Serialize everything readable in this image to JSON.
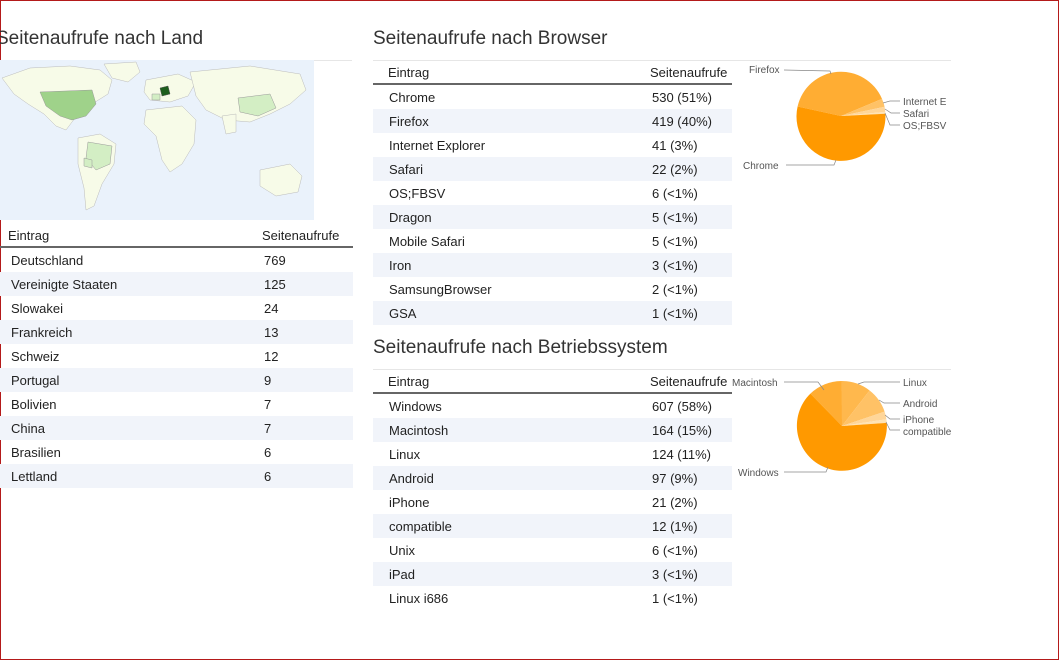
{
  "country": {
    "title": "Seitenaufrufe nach Land",
    "col_entry": "Eintrag",
    "col_views": "Seitenaufrufe",
    "rows": [
      {
        "label": "Deutschland",
        "value": "769"
      },
      {
        "label": "Vereinigte Staaten",
        "value": "125"
      },
      {
        "label": "Slowakei",
        "value": "24"
      },
      {
        "label": "Frankreich",
        "value": "13"
      },
      {
        "label": "Schweiz",
        "value": "12"
      },
      {
        "label": "Portugal",
        "value": "9"
      },
      {
        "label": "Bolivien",
        "value": "7"
      },
      {
        "label": "China",
        "value": "7"
      },
      {
        "label": "Brasilien",
        "value": "6"
      },
      {
        "label": "Lettland",
        "value": "6"
      }
    ]
  },
  "browser": {
    "title": "Seitenaufrufe nach Browser",
    "col_entry": "Eintrag",
    "col_views": "Seitenaufrufe",
    "rows": [
      {
        "label": "Chrome",
        "value": "530 (51%)"
      },
      {
        "label": "Firefox",
        "value": "419 (40%)"
      },
      {
        "label": "Internet Explorer",
        "value": "41 (3%)"
      },
      {
        "label": "Safari",
        "value": "22 (2%)"
      },
      {
        "label": "OS;FBSV",
        "value": "6 (<1%)"
      },
      {
        "label": "Dragon",
        "value": "5 (<1%)"
      },
      {
        "label": "Mobile Safari",
        "value": "5 (<1%)"
      },
      {
        "label": "Iron",
        "value": "3 (<1%)"
      },
      {
        "label": "SamsungBrowser",
        "value": "2 (<1%)"
      },
      {
        "label": "GSA",
        "value": "1 (<1%)"
      }
    ],
    "pie_labels": {
      "firefox": "Firefox",
      "ie": "Internet E",
      "safari": "Safari",
      "osfbsv": "OS;FBSV",
      "chrome": "Chrome"
    }
  },
  "os": {
    "title": "Seitenaufrufe nach Betriebssystem",
    "col_entry": "Eintrag",
    "col_views": "Seitenaufrufe",
    "rows": [
      {
        "label": "Windows",
        "value": "607 (58%)"
      },
      {
        "label": "Macintosh",
        "value": "164 (15%)"
      },
      {
        "label": "Linux",
        "value": "124 (11%)"
      },
      {
        "label": "Android",
        "value": "97 (9%)"
      },
      {
        "label": "iPhone",
        "value": "21 (2%)"
      },
      {
        "label": "compatible",
        "value": "12 (1%)"
      },
      {
        "label": "Unix",
        "value": "6 (<1%)"
      },
      {
        "label": "iPad",
        "value": "3 (<1%)"
      },
      {
        "label": "Linux i686",
        "value": "1 (<1%)"
      }
    ],
    "pie_labels": {
      "macintosh": "Macintosh",
      "linux": "Linux",
      "android": "Android",
      "iphone": "iPhone",
      "compatible": "compatible",
      "windows": "Windows"
    }
  },
  "colors": {
    "pie_main": "#ff9900",
    "pie_second": "#ffad33",
    "pie_third": "#ffc266",
    "pie_small": "#ffd699",
    "map_water": "#eaf2fb",
    "map_land": "#f7fbe8",
    "map_highlight": "#1d5e1d",
    "map_medium": "#9fd28a",
    "map_light": "#d3eec4"
  }
}
